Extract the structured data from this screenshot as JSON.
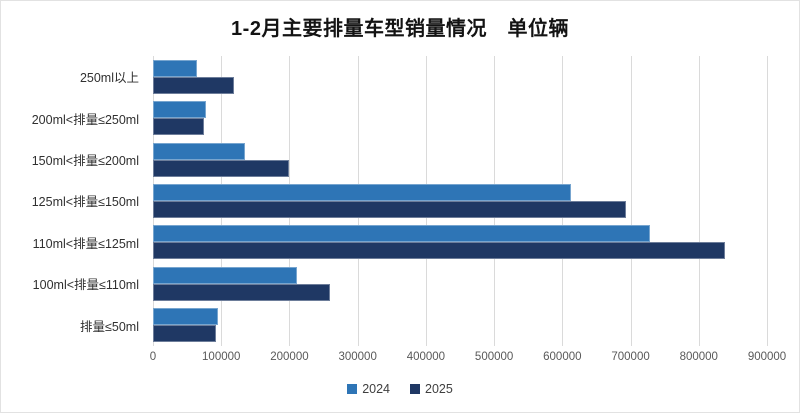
{
  "title": "1-2月主要排量车型销量情况　单位辆",
  "chart_data": {
    "type": "bar",
    "orientation": "horizontal",
    "title": "1-2月主要排量车型销量情况　单位辆",
    "categories": [
      "250ml以上",
      "200ml<排量≤250ml",
      "150ml<排量≤200ml",
      "125ml<排量≤150ml",
      "110ml<排量≤125ml",
      "100ml<排量≤110ml",
      "排量≤50ml"
    ],
    "series": [
      {
        "name": "2024",
        "color": "#2E75B6",
        "values": [
          65000,
          78000,
          135000,
          612000,
          728000,
          211000,
          96000
        ]
      },
      {
        "name": "2025",
        "color": "#1F3864",
        "values": [
          118000,
          75000,
          200000,
          693000,
          838000,
          259000,
          93000
        ]
      }
    ],
    "xlim": [
      0,
      900000
    ],
    "x_ticks": [
      0,
      100000,
      200000,
      300000,
      400000,
      500000,
      600000,
      700000,
      800000,
      900000
    ],
    "grid": true,
    "legend_position": "bottom",
    "colors": {
      "background": "#ffffff",
      "gridline": "#dadada",
      "tick_text": "#595959",
      "category_text": "#303030",
      "title_text": "#131313"
    }
  }
}
